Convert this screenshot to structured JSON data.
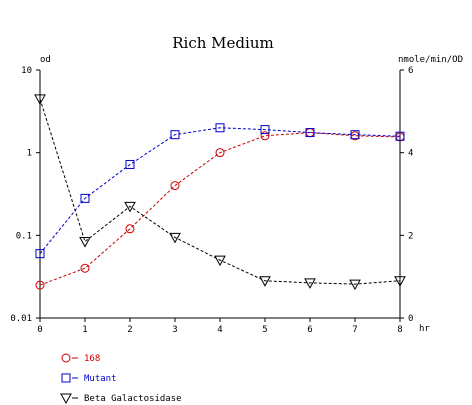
{
  "chart_data": {
    "type": "line",
    "title": "Rich Medium",
    "x": [
      0,
      1,
      2,
      3,
      4,
      5,
      6,
      7,
      8
    ],
    "x_ticks": [
      "0",
      "1",
      "2",
      "3",
      "4",
      "5",
      "6",
      "7",
      "8"
    ],
    "x_unit": "hr",
    "xlim": [
      0,
      8
    ],
    "y_left": {
      "unit": "od",
      "scale": "log",
      "ylim": [
        0.01,
        10
      ],
      "ticks": [
        "10",
        "1",
        "0.1",
        "0.01"
      ],
      "tick_values": [
        10,
        1,
        0.1,
        0.01
      ]
    },
    "y_right": {
      "unit": "nmole/min/OD",
      "scale": "linear",
      "ylim": [
        0,
        6
      ],
      "ticks": [
        "6",
        "4",
        "2",
        "0"
      ],
      "tick_values": [
        6,
        4,
        2,
        0
      ]
    },
    "grid": false,
    "legend_position": "bottom-left",
    "series": [
      {
        "name": "168",
        "axis": "left",
        "marker": "circle",
        "color": "#cc0000",
        "values": [
          0.025,
          0.04,
          0.12,
          0.4,
          1.0,
          1.6,
          1.75,
          1.6,
          1.55
        ]
      },
      {
        "name": "Mutant",
        "axis": "left",
        "marker": "square",
        "color": "#0000cc",
        "values": [
          0.06,
          0.28,
          0.72,
          1.65,
          2.0,
          1.9,
          1.75,
          1.65,
          1.58
        ]
      },
      {
        "name": "Beta Galactosidase",
        "axis": "right",
        "marker": "triangle-down",
        "color": "#000000",
        "values": [
          5.3,
          1.85,
          2.7,
          1.95,
          1.4,
          0.9,
          0.85,
          0.82,
          0.9
        ]
      }
    ]
  }
}
